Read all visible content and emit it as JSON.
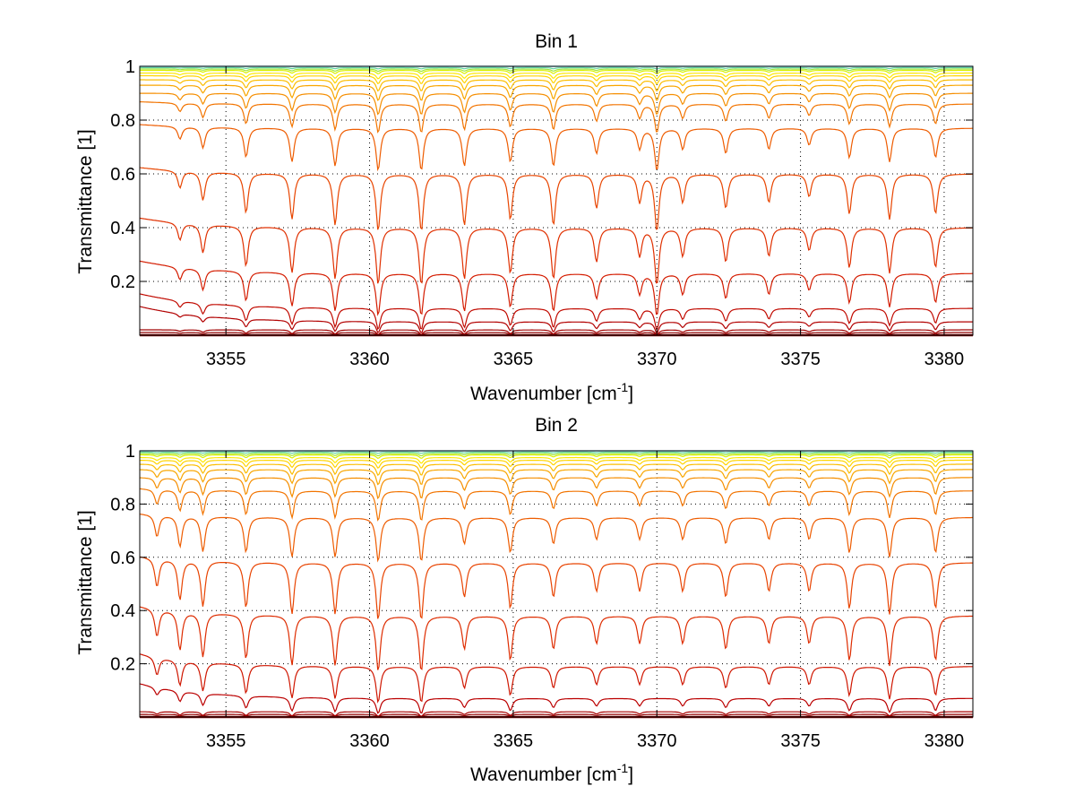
{
  "chart_data": [
    {
      "type": "line",
      "title": "Bin 1",
      "xlabel": "Wavenumber [cm",
      "xlabel_sup": "-1",
      "xlabel_end": "]",
      "ylabel": "Transmittance [1]",
      "xlim": [
        3352,
        3381
      ],
      "ylim": [
        0,
        1
      ],
      "x_ticks": [
        3355,
        3360,
        3365,
        3370,
        3375,
        3380
      ],
      "y_ticks": [
        0.2,
        0.4,
        0.6,
        0.8,
        1
      ],
      "x_tick_labels": [
        "3355",
        "3360",
        "3365",
        "3370",
        "3375",
        "3380"
      ],
      "y_tick_labels": [
        "0.2",
        "0.4",
        "0.6",
        "0.8",
        "1"
      ],
      "grid": true,
      "series_baselines": [
        0.0,
        0.01,
        0.02,
        0.05,
        0.1,
        0.23,
        0.4,
        0.6,
        0.77,
        0.86,
        0.9,
        0.93,
        0.95,
        0.965,
        0.975,
        0.985,
        0.99,
        0.995,
        1.0
      ],
      "series_colors": [
        "#800000",
        "#8f0000",
        "#a00000",
        "#b20000",
        "#c10a00",
        "#d41c00",
        "#e03000",
        "#e84500",
        "#ee5c00",
        "#f27400",
        "#f58e00",
        "#f8a600",
        "#fbbd00",
        "#ffd400",
        "#ffe800",
        "#d8f000",
        "#9fe53c",
        "#5fd3a0",
        "#22c6e0"
      ],
      "absorption_lines": [
        3353.4,
        3354.2,
        3355.7,
        3357.3,
        3358.8,
        3360.3,
        3361.8,
        3363.3,
        3364.9,
        3366.4,
        3367.9,
        3369.4,
        3370.0,
        3370.9,
        3372.4,
        3373.9,
        3375.3,
        3376.7,
        3378.1,
        3379.7
      ],
      "line_depths": [
        0.3,
        0.5,
        0.7,
        0.8,
        0.9,
        1.0,
        1.0,
        0.9,
        0.8,
        0.9,
        0.6,
        0.5,
        1.0,
        0.5,
        0.6,
        0.5,
        0.4,
        0.7,
        0.8,
        0.7
      ]
    },
    {
      "type": "line",
      "title": "Bin 2",
      "xlabel": "Wavenumber [cm",
      "xlabel_sup": "-1",
      "xlabel_end": "]",
      "ylabel": "Transmittance [1]",
      "xlim": [
        3352,
        3381
      ],
      "ylim": [
        0,
        1
      ],
      "x_ticks": [
        3355,
        3360,
        3365,
        3370,
        3375,
        3380
      ],
      "y_ticks": [
        0.2,
        0.4,
        0.6,
        0.8,
        1
      ],
      "x_tick_labels": [
        "3355",
        "3360",
        "3365",
        "3370",
        "3375",
        "3380"
      ],
      "y_tick_labels": [
        "0.2",
        "0.4",
        "0.6",
        "0.8",
        "1"
      ],
      "grid": true,
      "series_baselines": [
        0.0,
        0.01,
        0.02,
        0.07,
        0.19,
        0.38,
        0.58,
        0.75,
        0.85,
        0.9,
        0.93,
        0.95,
        0.965,
        0.975,
        0.985,
        0.99,
        0.995,
        1.0
      ],
      "series_colors": [
        "#800000",
        "#940000",
        "#a80000",
        "#bb0000",
        "#cf1600",
        "#de2c00",
        "#e84300",
        "#ee5c00",
        "#f27400",
        "#f58e00",
        "#f8a600",
        "#fbbd00",
        "#ffd400",
        "#ffe800",
        "#d8f000",
        "#9fe53c",
        "#5fd3a0",
        "#22c6e0"
      ],
      "absorption_lines": [
        3352.6,
        3353.4,
        3354.2,
        3355.7,
        3357.3,
        3358.8,
        3360.3,
        3361.8,
        3363.3,
        3364.9,
        3366.4,
        3367.9,
        3369.4,
        3370.9,
        3372.4,
        3373.9,
        3375.3,
        3376.7,
        3378.1,
        3379.7
      ],
      "line_depths": [
        0.5,
        0.7,
        0.8,
        0.8,
        0.9,
        0.9,
        1.0,
        1.0,
        0.6,
        0.8,
        0.6,
        0.5,
        0.5,
        0.5,
        0.6,
        0.5,
        0.5,
        0.8,
        0.9,
        0.8
      ]
    }
  ]
}
